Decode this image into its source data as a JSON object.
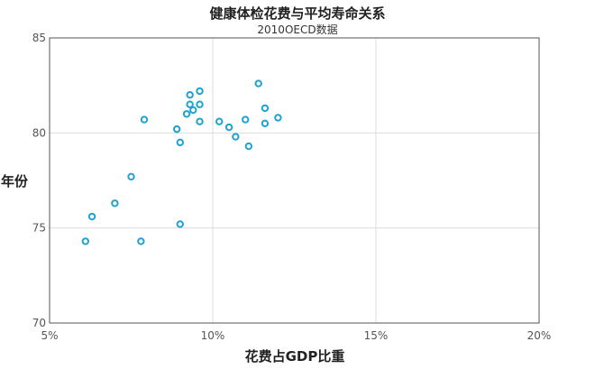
{
  "chart_data": {
    "type": "scatter",
    "title": "健康体检花费与平均寿命关系",
    "subtitle": "2010OECD数据",
    "xlabel": "花费占GDP比重",
    "ylabel": "年份",
    "xlim": [
      5,
      20
    ],
    "ylim": [
      70,
      85
    ],
    "x_ticks": [
      5,
      10,
      15,
      20
    ],
    "x_tick_labels": [
      "5%",
      "10%",
      "15%",
      "20%"
    ],
    "y_ticks": [
      70,
      75,
      80,
      85
    ],
    "y_tick_labels": [
      "70",
      "75",
      "80",
      "85"
    ],
    "grid": true,
    "color": "#1fa2d2",
    "series": [
      {
        "points": [
          {
            "x": 6.1,
            "y": 74.3
          },
          {
            "x": 6.3,
            "y": 75.6
          },
          {
            "x": 7.0,
            "y": 76.3
          },
          {
            "x": 7.5,
            "y": 77.7
          },
          {
            "x": 7.8,
            "y": 74.3
          },
          {
            "x": 7.9,
            "y": 80.7
          },
          {
            "x": 8.9,
            "y": 80.2
          },
          {
            "x": 9.0,
            "y": 79.5
          },
          {
            "x": 9.0,
            "y": 75.2
          },
          {
            "x": 9.2,
            "y": 81.0
          },
          {
            "x": 9.3,
            "y": 81.5
          },
          {
            "x": 9.3,
            "y": 82.0
          },
          {
            "x": 9.4,
            "y": 81.2
          },
          {
            "x": 9.6,
            "y": 82.2
          },
          {
            "x": 9.6,
            "y": 81.5
          },
          {
            "x": 9.6,
            "y": 80.6
          },
          {
            "x": 10.2,
            "y": 80.6
          },
          {
            "x": 10.5,
            "y": 80.3
          },
          {
            "x": 10.7,
            "y": 79.8
          },
          {
            "x": 11.0,
            "y": 80.7
          },
          {
            "x": 11.1,
            "y": 79.3
          },
          {
            "x": 11.4,
            "y": 82.6
          },
          {
            "x": 11.6,
            "y": 81.3
          },
          {
            "x": 11.6,
            "y": 80.5
          },
          {
            "x": 12.0,
            "y": 80.8
          }
        ]
      }
    ]
  }
}
